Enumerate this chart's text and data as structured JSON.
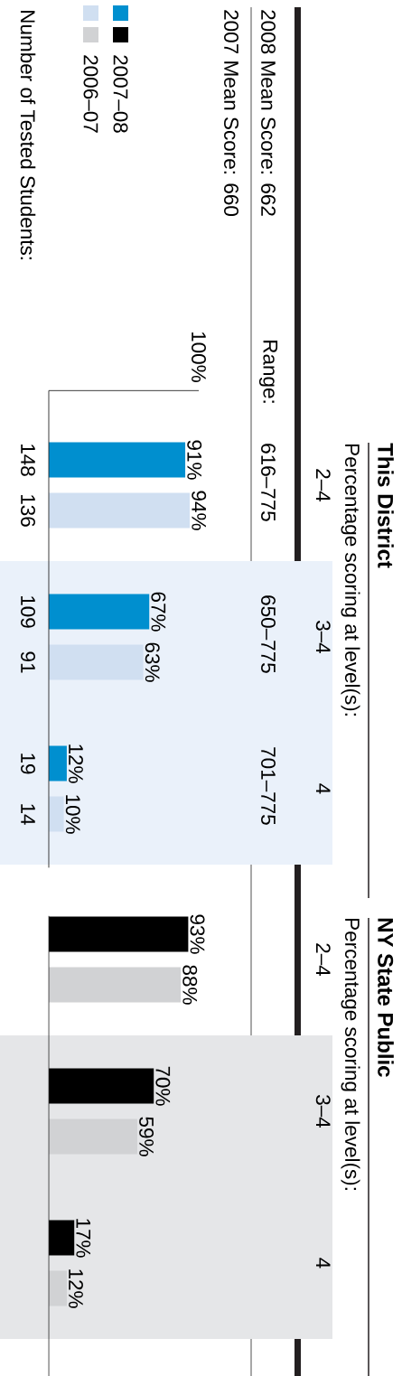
{
  "chart_data": [
    {
      "type": "bar",
      "orientation": "horizontal",
      "categories": [
        "2–4",
        "3–4",
        "4"
      ],
      "series": [
        {
          "name": "2007–08",
          "color": "#008fcf",
          "values": [
            91,
            67,
            12
          ],
          "value_labels": [
            "91%",
            "67%",
            "12%"
          ]
        },
        {
          "name": "2006–07",
          "color": "#d0dff1",
          "values": [
            94,
            63,
            10
          ],
          "value_labels": [
            "94%",
            "63%",
            "10%"
          ]
        }
      ],
      "xlim": [
        0,
        100
      ],
      "bands": [
        {
          "axis": "y",
          "from": "3–4",
          "to": "4",
          "color": "#eaf1fa"
        }
      ],
      "legend": "left",
      "annotations": [
        "2008 Mean Score: 662",
        "2007 Mean Score: 660",
        "Range:",
        "616–775",
        "650–775",
        "701–775",
        "Number of Tested Students:",
        "148",
        "136",
        "109",
        "91",
        "19",
        "14",
        "100%",
        "This District",
        "Percentage scoring at level(s):"
      ]
    },
    {
      "type": "bar",
      "orientation": "horizontal",
      "annotations": [
        "NY State Public",
        "Percentage scoring at level(s):"
      ],
      "categories": [
        "2–4",
        "3–4",
        "4"
      ],
      "series": [
        {
          "color": "#000000",
          "values": [
            93,
            70,
            17
          ],
          "value_labels": [
            "93%",
            "70%",
            "17%"
          ]
        },
        {
          "color": "#d1d2d4",
          "values": [
            88,
            59,
            12
          ],
          "value_labels": [
            "88%",
            "59%",
            "12%"
          ]
        }
      ],
      "bands": [
        {
          "axis": "y",
          "from": "3–4",
          "to": "4",
          "color": "#e5e6e8"
        }
      ]
    }
  ]
}
